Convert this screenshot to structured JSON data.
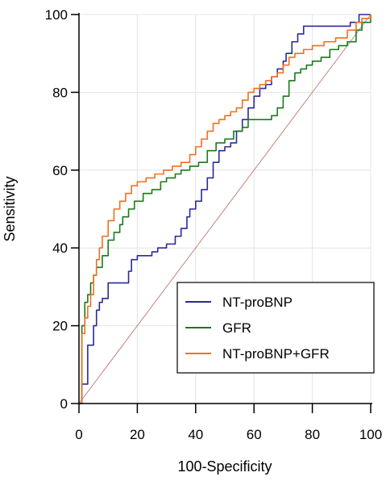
{
  "chart_data": {
    "type": "line",
    "xlabel": "100-Specificity",
    "ylabel": "Sensitivity",
    "xlim": [
      0,
      100
    ],
    "ylim": [
      0,
      100
    ],
    "x_ticks": [
      0,
      20,
      40,
      60,
      80,
      100
    ],
    "y_ticks": [
      0,
      20,
      40,
      60,
      80,
      100
    ],
    "grid": true,
    "legend_position": "bottom-right",
    "reference_line": {
      "from": [
        0,
        0
      ],
      "to": [
        100,
        100
      ],
      "color": "#c08080"
    },
    "series": [
      {
        "name": "NT-proBNP",
        "color": "#2a2a9a",
        "points": [
          [
            0,
            0
          ],
          [
            1,
            5
          ],
          [
            3,
            15
          ],
          [
            5,
            20
          ],
          [
            6,
            24
          ],
          [
            7,
            26
          ],
          [
            8,
            27
          ],
          [
            10,
            31
          ],
          [
            12,
            31
          ],
          [
            14,
            31
          ],
          [
            17,
            34
          ],
          [
            18,
            37
          ],
          [
            20,
            38
          ],
          [
            23,
            38
          ],
          [
            25,
            39
          ],
          [
            27,
            40
          ],
          [
            28,
            40
          ],
          [
            30,
            41
          ],
          [
            33,
            43
          ],
          [
            35,
            45
          ],
          [
            37,
            48
          ],
          [
            38,
            50
          ],
          [
            40,
            52
          ],
          [
            42,
            55
          ],
          [
            44,
            58
          ],
          [
            46,
            62
          ],
          [
            48,
            65
          ],
          [
            50,
            66
          ],
          [
            52,
            67
          ],
          [
            54,
            70
          ],
          [
            56,
            73
          ],
          [
            58,
            76
          ],
          [
            60,
            79
          ],
          [
            62,
            81
          ],
          [
            64,
            82
          ],
          [
            66,
            84
          ],
          [
            68,
            86
          ],
          [
            70,
            88
          ],
          [
            71,
            90
          ],
          [
            73,
            93
          ],
          [
            75,
            95
          ],
          [
            77,
            97
          ],
          [
            80,
            97
          ],
          [
            85,
            97
          ],
          [
            90,
            97
          ],
          [
            93,
            98
          ],
          [
            96,
            100
          ],
          [
            100,
            100
          ]
        ]
      },
      {
        "name": "GFR",
        "color": "#1a7a1a",
        "points": [
          [
            0,
            0
          ],
          [
            1,
            15
          ],
          [
            1,
            20
          ],
          [
            2,
            26
          ],
          [
            3,
            28
          ],
          [
            4,
            31
          ],
          [
            5,
            33
          ],
          [
            6,
            35
          ],
          [
            8,
            38
          ],
          [
            10,
            42
          ],
          [
            12,
            44
          ],
          [
            14,
            46
          ],
          [
            15,
            48
          ],
          [
            17,
            50
          ],
          [
            19,
            52
          ],
          [
            22,
            54
          ],
          [
            25,
            55
          ],
          [
            28,
            57
          ],
          [
            30,
            58
          ],
          [
            33,
            59
          ],
          [
            35,
            60
          ],
          [
            38,
            61
          ],
          [
            41,
            62
          ],
          [
            44,
            65
          ],
          [
            47,
            67
          ],
          [
            50,
            68
          ],
          [
            53,
            70
          ],
          [
            56,
            71
          ],
          [
            58,
            73
          ],
          [
            60,
            73
          ],
          [
            63,
            73
          ],
          [
            66,
            74
          ],
          [
            68,
            76
          ],
          [
            70,
            79
          ],
          [
            72,
            83
          ],
          [
            74,
            85
          ],
          [
            76,
            86
          ],
          [
            78,
            87
          ],
          [
            80,
            88
          ],
          [
            83,
            89
          ],
          [
            86,
            91
          ],
          [
            89,
            92
          ],
          [
            92,
            93
          ],
          [
            95,
            96
          ],
          [
            97,
            98
          ],
          [
            100,
            100
          ]
        ]
      },
      {
        "name": "NT-proBNP+GFR",
        "color": "#f07020",
        "points": [
          [
            0,
            0
          ],
          [
            1,
            15
          ],
          [
            1,
            18
          ],
          [
            2,
            22
          ],
          [
            3,
            25
          ],
          [
            4,
            28
          ],
          [
            5,
            33
          ],
          [
            6,
            37
          ],
          [
            7,
            40
          ],
          [
            8,
            43
          ],
          [
            10,
            47
          ],
          [
            12,
            50
          ],
          [
            14,
            52
          ],
          [
            16,
            54
          ],
          [
            18,
            56
          ],
          [
            20,
            57
          ],
          [
            23,
            58
          ],
          [
            26,
            59
          ],
          [
            29,
            60
          ],
          [
            32,
            61
          ],
          [
            35,
            62
          ],
          [
            38,
            64
          ],
          [
            40,
            66
          ],
          [
            42,
            68
          ],
          [
            44,
            70
          ],
          [
            46,
            72
          ],
          [
            48,
            73
          ],
          [
            50,
            74
          ],
          [
            52,
            75
          ],
          [
            54,
            76
          ],
          [
            56,
            78
          ],
          [
            58,
            80
          ],
          [
            60,
            81
          ],
          [
            62,
            82
          ],
          [
            64,
            83
          ],
          [
            66,
            84
          ],
          [
            68,
            85
          ],
          [
            70,
            87
          ],
          [
            72,
            89
          ],
          [
            74,
            90
          ],
          [
            77,
            91
          ],
          [
            80,
            92
          ],
          [
            84,
            93
          ],
          [
            88,
            94
          ],
          [
            92,
            96
          ],
          [
            95,
            98
          ],
          [
            97,
            99
          ],
          [
            100,
            100
          ]
        ]
      }
    ]
  }
}
